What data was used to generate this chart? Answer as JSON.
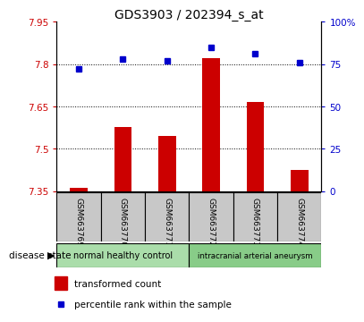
{
  "title": "GDS3903 / 202394_s_at",
  "samples": [
    "GSM663769",
    "GSM663770",
    "GSM663771",
    "GSM663772",
    "GSM663773",
    "GSM663774"
  ],
  "transformed_count": [
    7.363,
    7.578,
    7.545,
    7.82,
    7.667,
    7.425
  ],
  "percentile_rank": [
    72,
    78,
    77,
    85,
    81,
    76
  ],
  "ylim_left": [
    7.35,
    7.95
  ],
  "ylim_right": [
    0,
    100
  ],
  "yticks_left": [
    7.35,
    7.5,
    7.65,
    7.8,
    7.95
  ],
  "ytick_labels_left": [
    "7.35",
    "7.5",
    "7.65",
    "7.8",
    "7.95"
  ],
  "yticks_right": [
    0,
    25,
    50,
    75,
    100
  ],
  "ytick_labels_right": [
    "0",
    "25",
    "50",
    "75",
    "100%"
  ],
  "hgrid_values": [
    7.5,
    7.65,
    7.8
  ],
  "bar_color": "#cc0000",
  "dot_color": "#0000cc",
  "bar_bottom": 7.35,
  "disease_state_label": "disease state",
  "legend_bar_label": "transformed count",
  "legend_dot_label": "percentile rank within the sample",
  "bg_color": "#ffffff",
  "plot_bg": "#ffffff",
  "tick_label_color_left": "#cc0000",
  "tick_label_color_right": "#0000cc",
  "sample_box_color": "#c8c8c8",
  "group1_color": "#aaddaa",
  "group2_color": "#88cc88"
}
